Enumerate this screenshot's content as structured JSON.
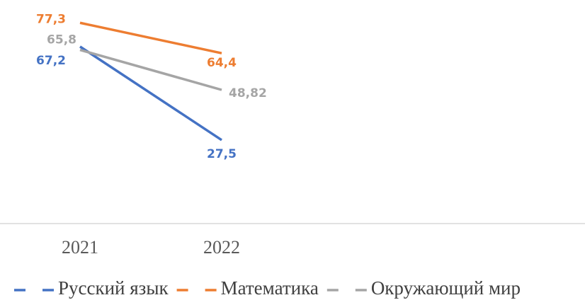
{
  "chart_data": {
    "type": "line",
    "categories": [
      "2021",
      "2022",
      null,
      null
    ],
    "series": [
      {
        "name": "Русский язык",
        "color": "#4472c4",
        "values": [
          67.2,
          27.5,
          null,
          null
        ],
        "value_labels": [
          "67,2",
          "27,5",
          null,
          null
        ]
      },
      {
        "name": "Математика",
        "color": "#ed7d31",
        "values": [
          77.3,
          64.4,
          null,
          null
        ],
        "value_labels": [
          "77,3",
          "64,4",
          null,
          null
        ]
      },
      {
        "name": "Окружающий мир",
        "color": "#a5a5a5",
        "values": [
          65.8,
          48.82,
          null,
          null
        ],
        "value_labels": [
          "65,8",
          "48,82",
          null,
          null
        ]
      }
    ],
    "ylim": [
      -8,
      87
    ],
    "legend": "bottom"
  }
}
